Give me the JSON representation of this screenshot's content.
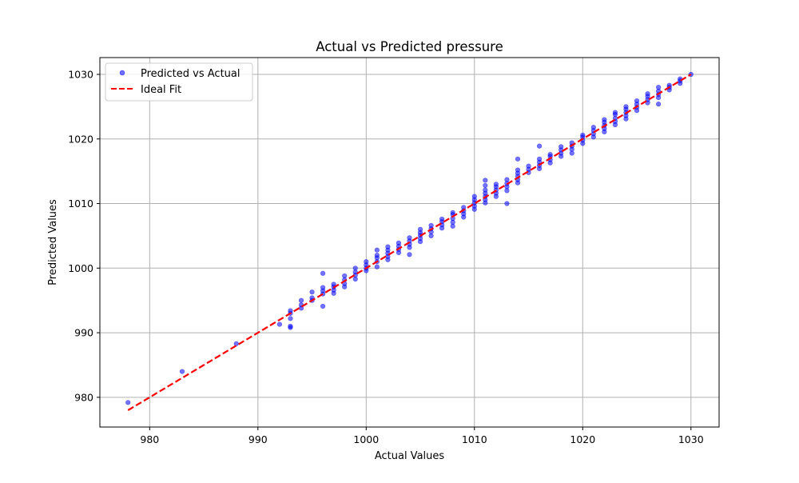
{
  "chart_data": {
    "type": "scatter",
    "title": "Actual vs Predicted pressure",
    "xlabel": "Actual Values",
    "ylabel": "Predicted Values",
    "xlim": [
      975.4,
      1032.6
    ],
    "ylim": [
      975.4,
      1032.6
    ],
    "xticks": [
      980,
      990,
      1000,
      1010,
      1020,
      1030
    ],
    "yticks": [
      980,
      990,
      1000,
      1010,
      1020,
      1030
    ],
    "grid": true,
    "legend_position": "upper-left",
    "series": [
      {
        "name": "Predicted vs Actual",
        "kind": "scatter",
        "color": "#0000ff",
        "opacity": 0.55,
        "points": [
          [
            978,
            979.2
          ],
          [
            983,
            984.0
          ],
          [
            988,
            988.3
          ],
          [
            992,
            991.3
          ],
          [
            993,
            990.8
          ],
          [
            993,
            991.0
          ],
          [
            993,
            992.2
          ],
          [
            993,
            993.0
          ],
          [
            993,
            993.4
          ],
          [
            994,
            993.8
          ],
          [
            994,
            994.3
          ],
          [
            994,
            995.0
          ],
          [
            995,
            995.0
          ],
          [
            995,
            995.4
          ],
          [
            995,
            996.3
          ],
          [
            996,
            994.1
          ],
          [
            996,
            996.0
          ],
          [
            996,
            996.5
          ],
          [
            996,
            997.0
          ],
          [
            996,
            999.2
          ],
          [
            997,
            996.1
          ],
          [
            997,
            996.6
          ],
          [
            997,
            997.1
          ],
          [
            997,
            997.5
          ],
          [
            998,
            997.1
          ],
          [
            998,
            997.6
          ],
          [
            998,
            998.2
          ],
          [
            998,
            998.8
          ],
          [
            999,
            998.3
          ],
          [
            999,
            998.9
          ],
          [
            999,
            999.4
          ],
          [
            999,
            1000.0
          ],
          [
            1000,
            999.6
          ],
          [
            1000,
            1000.0
          ],
          [
            1000,
            1000.5
          ],
          [
            1000,
            1001.0
          ],
          [
            1001,
            1000.2
          ],
          [
            1001,
            1001.0
          ],
          [
            1001,
            1001.6
          ],
          [
            1001,
            1002.0
          ],
          [
            1001,
            1002.8
          ],
          [
            1002,
            1001.3
          ],
          [
            1002,
            1001.8
          ],
          [
            1002,
            1002.3
          ],
          [
            1002,
            1002.8
          ],
          [
            1002,
            1003.3
          ],
          [
            1003,
            1002.4
          ],
          [
            1003,
            1002.9
          ],
          [
            1003,
            1003.4
          ],
          [
            1003,
            1003.9
          ],
          [
            1004,
            1002.1
          ],
          [
            1004,
            1003.2
          ],
          [
            1004,
            1003.7
          ],
          [
            1004,
            1004.2
          ],
          [
            1004,
            1004.7
          ],
          [
            1005,
            1004.1
          ],
          [
            1005,
            1004.6
          ],
          [
            1005,
            1005.1
          ],
          [
            1005,
            1005.5
          ],
          [
            1005,
            1006.0
          ],
          [
            1006,
            1005.0
          ],
          [
            1006,
            1005.6
          ],
          [
            1006,
            1006.1
          ],
          [
            1006,
            1006.6
          ],
          [
            1007,
            1006.2
          ],
          [
            1007,
            1006.7
          ],
          [
            1007,
            1007.2
          ],
          [
            1007,
            1007.6
          ],
          [
            1008,
            1006.5
          ],
          [
            1008,
            1007.1
          ],
          [
            1008,
            1007.7
          ],
          [
            1008,
            1008.3
          ],
          [
            1008,
            1008.6
          ],
          [
            1009,
            1007.9
          ],
          [
            1009,
            1008.4
          ],
          [
            1009,
            1008.9
          ],
          [
            1009,
            1009.4
          ],
          [
            1010,
            1009.1
          ],
          [
            1010,
            1009.6
          ],
          [
            1010,
            1010.1
          ],
          [
            1010,
            1010.6
          ],
          [
            1010,
            1011.1
          ],
          [
            1011,
            1010.1
          ],
          [
            1011,
            1010.6
          ],
          [
            1011,
            1011.1
          ],
          [
            1011,
            1011.6
          ],
          [
            1011,
            1012.1
          ],
          [
            1011,
            1012.8
          ],
          [
            1011,
            1013.6
          ],
          [
            1012,
            1011.1
          ],
          [
            1012,
            1011.6
          ],
          [
            1012,
            1012.1
          ],
          [
            1012,
            1012.6
          ],
          [
            1012,
            1013.0
          ],
          [
            1013,
            1010.0
          ],
          [
            1013,
            1012.0
          ],
          [
            1013,
            1012.6
          ],
          [
            1013,
            1013.1
          ],
          [
            1013,
            1013.7
          ],
          [
            1014,
            1013.2
          ],
          [
            1014,
            1013.7
          ],
          [
            1014,
            1014.2
          ],
          [
            1014,
            1014.7
          ],
          [
            1014,
            1015.2
          ],
          [
            1014,
            1016.9
          ],
          [
            1015,
            1014.8
          ],
          [
            1015,
            1015.3
          ],
          [
            1015,
            1015.8
          ],
          [
            1016,
            1015.4
          ],
          [
            1016,
            1015.9
          ],
          [
            1016,
            1016.4
          ],
          [
            1016,
            1016.9
          ],
          [
            1016,
            1018.9
          ],
          [
            1017,
            1016.3
          ],
          [
            1017,
            1016.8
          ],
          [
            1017,
            1017.3
          ],
          [
            1017,
            1017.6
          ],
          [
            1018,
            1017.3
          ],
          [
            1018,
            1017.8
          ],
          [
            1018,
            1018.3
          ],
          [
            1018,
            1018.8
          ],
          [
            1019,
            1017.8
          ],
          [
            1019,
            1018.4
          ],
          [
            1019,
            1018.9
          ],
          [
            1019,
            1019.4
          ],
          [
            1020,
            1019.3
          ],
          [
            1020,
            1019.8
          ],
          [
            1020,
            1020.3
          ],
          [
            1020,
            1020.6
          ],
          [
            1021,
            1020.3
          ],
          [
            1021,
            1020.8
          ],
          [
            1021,
            1021.3
          ],
          [
            1021,
            1021.8
          ],
          [
            1022,
            1021.1
          ],
          [
            1022,
            1021.6
          ],
          [
            1022,
            1022.1
          ],
          [
            1022,
            1022.6
          ],
          [
            1022,
            1023.0
          ],
          [
            1023,
            1022.2
          ],
          [
            1023,
            1022.7
          ],
          [
            1023,
            1023.2
          ],
          [
            1023,
            1023.8
          ],
          [
            1023,
            1024.1
          ],
          [
            1024,
            1023.1
          ],
          [
            1024,
            1023.6
          ],
          [
            1024,
            1024.1
          ],
          [
            1024,
            1024.6
          ],
          [
            1024,
            1025.0
          ],
          [
            1025,
            1024.4
          ],
          [
            1025,
            1024.9
          ],
          [
            1025,
            1025.4
          ],
          [
            1025,
            1025.9
          ],
          [
            1026,
            1025.6
          ],
          [
            1026,
            1026.1
          ],
          [
            1026,
            1026.6
          ],
          [
            1026,
            1027.0
          ],
          [
            1027,
            1025.4
          ],
          [
            1027,
            1026.4
          ],
          [
            1027,
            1026.9
          ],
          [
            1027,
            1027.4
          ],
          [
            1027,
            1028.0
          ],
          [
            1028,
            1027.6
          ],
          [
            1028,
            1028.0
          ],
          [
            1028,
            1028.3
          ],
          [
            1029,
            1028.6
          ],
          [
            1029,
            1029.0
          ],
          [
            1029,
            1029.3
          ],
          [
            1030,
            1030.0
          ]
        ]
      },
      {
        "name": "Ideal Fit",
        "kind": "line",
        "color": "#ff0000",
        "dashed": true,
        "points": [
          [
            978,
            978
          ],
          [
            1030,
            1030
          ]
        ]
      }
    ]
  }
}
